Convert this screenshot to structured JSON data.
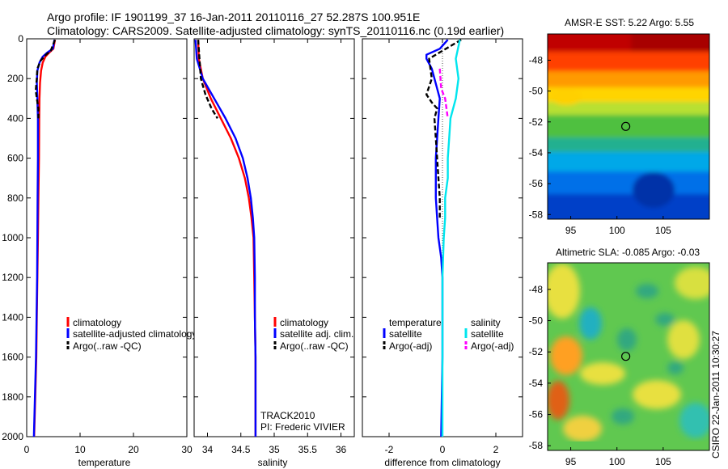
{
  "title": {
    "line1": "Argo profile: IF 1901199_37 16-Jan-2011 20110116_27 52.287S 100.951E",
    "line2": "Climatology: CARS2009. Satellite-adjusted climatology: synTS_20110116.nc (0.19d earlier)"
  },
  "credit": "CSIRO 22-Jan-2011 10:30:27",
  "colors": {
    "climatology": "#ff0000",
    "satellite": "#0000ff",
    "argo": "#000000",
    "sal_satellite": "#00e5ee",
    "sal_argo": "#ff00ff"
  },
  "chart_data": [
    {
      "type": "line",
      "xlabel": "temperature",
      "ylabel": "",
      "xlim": [
        0,
        30
      ],
      "ylim": [
        2000,
        0
      ],
      "y_reversed": true,
      "xticks": [
        "0",
        "10",
        "20",
        "30"
      ],
      "yticks": [
        "0",
        "200",
        "400",
        "600",
        "800",
        "1000",
        "1200",
        "1400",
        "1600",
        "1800",
        "2000"
      ],
      "grid": false,
      "legend": [
        "climatology",
        "satellite-adjusted climatology",
        "Argo(..raw -QC)"
      ],
      "legend_placement": "lower-right",
      "series": [
        {
          "name": "climatology",
          "color": "#ff0000",
          "points": [
            [
              5.3,
              5
            ],
            [
              5.0,
              50
            ],
            [
              4.2,
              70
            ],
            [
              3.5,
              90
            ],
            [
              3.0,
              120
            ],
            [
              2.7,
              160
            ],
            [
              2.5,
              220
            ],
            [
              2.4,
              300
            ],
            [
              2.35,
              400
            ],
            [
              2.3,
              600
            ],
            [
              2.2,
              800
            ],
            [
              2.1,
              1000
            ],
            [
              2.0,
              1200
            ],
            [
              1.9,
              1400
            ],
            [
              1.8,
              1600
            ],
            [
              1.6,
              1800
            ],
            [
              1.4,
              2000
            ]
          ]
        },
        {
          "name": "satellite-adjusted climatology",
          "color": "#0000ff",
          "points": [
            [
              5.2,
              5
            ],
            [
              4.9,
              50
            ],
            [
              3.8,
              70
            ],
            [
              3.0,
              90
            ],
            [
              2.4,
              120
            ],
            [
              2.0,
              160
            ],
            [
              1.9,
              220
            ],
            [
              2.0,
              300
            ],
            [
              2.1,
              400
            ],
            [
              2.1,
              600
            ],
            [
              2.05,
              800
            ],
            [
              2.0,
              1000
            ],
            [
              1.95,
              1200
            ],
            [
              1.85,
              1400
            ],
            [
              1.75,
              1600
            ],
            [
              1.55,
              1800
            ],
            [
              1.35,
              2000
            ]
          ]
        },
        {
          "name": "Argo(..raw -QC)",
          "color": "#000000",
          "points": [
            [
              5.3,
              5
            ],
            [
              4.5,
              60
            ],
            [
              3.6,
              80
            ],
            [
              2.6,
              110
            ],
            [
              2.0,
              150
            ],
            [
              1.9,
              200
            ],
            [
              1.7,
              260
            ],
            [
              1.9,
              300
            ],
            [
              2.2,
              350
            ],
            [
              2.2,
              400
            ]
          ]
        }
      ]
    },
    {
      "type": "line",
      "xlabel": "salinity",
      "ylabel": "",
      "xlim": [
        33.8,
        36.2
      ],
      "ylim": [
        2000,
        0
      ],
      "y_reversed": true,
      "xticks": [
        "34",
        "34.5",
        "35",
        "35.5",
        "36"
      ],
      "grid": false,
      "legend": [
        "climatology",
        "satellite adj. clim.",
        "Argo(..raw -QC)"
      ],
      "legend_placement": "lower-right",
      "annotations": [
        "TRACK2010",
        "PI: Frederic VIVIER"
      ],
      "series": [
        {
          "name": "climatology",
          "color": "#ff0000",
          "points": [
            [
              33.86,
              5
            ],
            [
              33.87,
              100
            ],
            [
              33.93,
              200
            ],
            [
              34.05,
              300
            ],
            [
              34.2,
              400
            ],
            [
              34.35,
              500
            ],
            [
              34.47,
              600
            ],
            [
              34.56,
              700
            ],
            [
              34.62,
              800
            ],
            [
              34.66,
              900
            ],
            [
              34.69,
              1000
            ],
            [
              34.7,
              1200
            ],
            [
              34.71,
              1400
            ],
            [
              34.72,
              1600
            ],
            [
              34.72,
              1800
            ],
            [
              34.72,
              2000
            ]
          ]
        },
        {
          "name": "satellite adj. clim.",
          "color": "#0000ff",
          "points": [
            [
              33.82,
              5
            ],
            [
              33.84,
              100
            ],
            [
              33.93,
              200
            ],
            [
              34.1,
              300
            ],
            [
              34.27,
              400
            ],
            [
              34.42,
              500
            ],
            [
              34.53,
              600
            ],
            [
              34.6,
              700
            ],
            [
              34.65,
              800
            ],
            [
              34.68,
              900
            ],
            [
              34.7,
              1000
            ],
            [
              34.71,
              1200
            ],
            [
              34.71,
              1400
            ],
            [
              34.72,
              1600
            ],
            [
              34.72,
              1800
            ],
            [
              34.72,
              2000
            ]
          ]
        },
        {
          "name": "Argo(..raw -QC)",
          "color": "#000000",
          "points": [
            [
              33.86,
              5
            ],
            [
              33.9,
              200
            ],
            [
              33.97,
              280
            ],
            [
              34.06,
              350
            ],
            [
              34.15,
              400
            ]
          ]
        }
      ]
    },
    {
      "type": "line",
      "xlabel": "difference from climatology",
      "ylabel": "",
      "xlim": [
        -3,
        3
      ],
      "ylim": [
        2000,
        0
      ],
      "y_reversed": true,
      "xticks": [
        "-2",
        "0",
        "2"
      ],
      "grid": false,
      "legend_groups": [
        {
          "title": "temperature",
          "items": [
            "satellite",
            "Argo(-adj)"
          ]
        },
        {
          "title": "salinity",
          "items": [
            "satellite",
            "Argo(-adj)"
          ]
        }
      ],
      "legend_placement": "lower-center",
      "series": [
        {
          "name": "temperature satellite",
          "color": "#0000ff",
          "points": [
            [
              0.2,
              5
            ],
            [
              -0.1,
              50
            ],
            [
              -0.6,
              80
            ],
            [
              -0.6,
              100
            ],
            [
              -0.4,
              150
            ],
            [
              -0.2,
              250
            ],
            [
              -0.1,
              300
            ],
            [
              -0.15,
              400
            ],
            [
              -0.2,
              500
            ],
            [
              -0.25,
              600
            ],
            [
              -0.25,
              700
            ],
            [
              -0.25,
              800
            ],
            [
              -0.2,
              900
            ],
            [
              -0.15,
              1000
            ],
            [
              -0.05,
              1100
            ],
            [
              0,
              1200
            ],
            [
              0,
              1600
            ],
            [
              -0.05,
              2000
            ]
          ]
        },
        {
          "name": "temperature Argo(-adj)",
          "color": "#000000",
          "dashed": true,
          "points": [
            [
              0.7,
              5
            ],
            [
              0,
              60
            ],
            [
              -0.5,
              100
            ],
            [
              -0.4,
              200
            ],
            [
              -0.6,
              280
            ],
            [
              -0.4,
              320
            ],
            [
              -0.2,
              350
            ],
            [
              -0.3,
              400
            ],
            [
              -0.25,
              500
            ],
            [
              -0.2,
              600
            ],
            [
              -0.15,
              700
            ],
            [
              -0.1,
              800
            ],
            [
              -0.1,
              900
            ]
          ]
        },
        {
          "name": "salinity satellite",
          "color": "#00e5ee",
          "points": [
            [
              0.65,
              5
            ],
            [
              0.5,
              100
            ],
            [
              0.6,
              200
            ],
            [
              0.5,
              300
            ],
            [
              0.3,
              400
            ],
            [
              0.25,
              500
            ],
            [
              0.2,
              600
            ],
            [
              0.2,
              700
            ],
            [
              0.1,
              800
            ],
            [
              0.1,
              900
            ],
            [
              0.05,
              1000
            ],
            [
              0,
              1200
            ],
            [
              0,
              2000
            ]
          ]
        },
        {
          "name": "salinity Argo(-adj)",
          "color": "#ff00ff",
          "dashed": true,
          "points": [
            [
              -0.1,
              150
            ],
            [
              -0.05,
              250
            ],
            [
              0.1,
              300
            ],
            [
              0.2,
              400
            ]
          ]
        }
      ]
    },
    {
      "type": "heatmap",
      "title": "AMSR-E SST: 5.22 Argo: 5.55",
      "xlim": [
        92.5,
        110
      ],
      "ylim": [
        -58.3,
        -46.3
      ],
      "xticks": [
        "95",
        "100",
        "105"
      ],
      "yticks": [
        "-48",
        "-50",
        "-52",
        "-54",
        "-56",
        "-58"
      ],
      "marker": {
        "lon": 100.951,
        "lat": -52.287
      }
    },
    {
      "type": "heatmap",
      "title": "Altimetric SLA: -0.085 Argo: -0.03",
      "xlim": [
        92.5,
        110
      ],
      "ylim": [
        -58.3,
        -46.3
      ],
      "xticks": [
        "95",
        "100",
        "105"
      ],
      "yticks": [
        "-48",
        "-50",
        "-52",
        "-54",
        "-56",
        "-58"
      ],
      "marker": {
        "lon": 100.951,
        "lat": -52.287
      }
    }
  ]
}
